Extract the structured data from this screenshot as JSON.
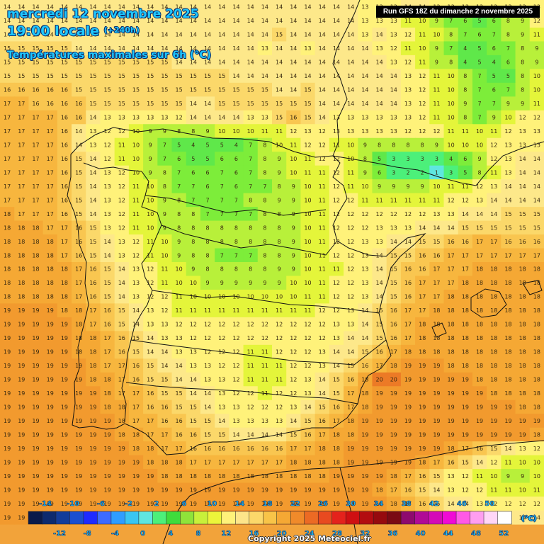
{
  "header": {
    "date_line": "mercredi 12 novembre 2025",
    "time_line": "19:00 locale",
    "lead_time": "(+240h)",
    "parameter_line": "Températures maximales sur 6h (°C)",
    "run_label": "Run GFS 18Z du dimanche 2 novembre 2025"
  },
  "footer": {
    "copyright": "Copyright 2025 Meteociel.fr",
    "unit": "(°C)"
  },
  "legend": {
    "top_labels": [
      "-14",
      "-10",
      "-6",
      "-2",
      "2",
      "6",
      "10",
      "14",
      "18",
      "22",
      "26",
      "30",
      "34",
      "38",
      "42",
      "46",
      "50"
    ],
    "bottom_labels": [
      "-12",
      "-8",
      "-4",
      "0",
      "4",
      "8",
      "12",
      "16",
      "20",
      "24",
      "28",
      "32",
      "36",
      "40",
      "44",
      "48",
      "52"
    ],
    "colors": [
      "#0a1a4a",
      "#0d2a6e",
      "#123c9a",
      "#1a4fd0",
      "#1e2bff",
      "#3d6bff",
      "#2f9dff",
      "#39c6f2",
      "#5fe6e0",
      "#4cf07a",
      "#3fdc3c",
      "#8fe33a",
      "#c8f03a",
      "#ecf53a",
      "#fff27a",
      "#fde58a",
      "#fbd86a",
      "#f8c448",
      "#f5a834",
      "#f08a2a",
      "#ec6a24",
      "#e84a20",
      "#e4221c",
      "#cf0f12",
      "#b30c10",
      "#960a0e",
      "#7a0a14",
      "#8e0a6e",
      "#b00a96",
      "#d40ab8",
      "#f00ad6",
      "#ff5ae6",
      "#ff9ef0",
      "#ffd6f8",
      "#ffffff"
    ]
  },
  "map": {
    "cities_shown": false,
    "grid_columns": 38,
    "grid_rows": 38,
    "temperature_rows": [
      "14 14 14 14 14 14 14 14 14 14 14 14 14 14 14 14 14 14 14 14 14 14 14 14 14 13 13 13 14 14 13 13 13 13 12 13 13 13",
      "14 14 14 14 14 14 14 14 14 14 14 14 14 14 14 14 14 14 14 14 14 14 14 14 14 13 13 13 11 10 9 7 6 5 6 8 9 12",
      "14 14 14 14 14 14 14 14 14 14 14 14 14 14 14 14 14 14 14 15 14 14 14 14 14 13 14 13 12 11 10 8 7 6 7 8 9 11",
      "15 15 15 15 15 14 14 14 14 14 14 14 14 14 14 14 14 14 13 14 14 13 14 14 14 14 13 12 11 10 9 7 4 5 6 7 8 9",
      "15 15 15 15 15 15 15 15 15 15 15 15 14 14 14 14 14 14 14 14 14 14 14 14 14 14 14 13 12 11 9 8 4 5 4 6 8 9",
      "15 15 15 15 15 15 15 15 15 15 15 15 15 15 15 15 14 14 14 14 14 14 14 14 14 14 14 14 13 12 11 10 8 7 5 5 8 10",
      "16 16 16 16 16 15 15 15 15 15 15 15 15 15 15 15 15 15 15 14 14 15 14 14 14 14 14 14 13 12 11 10 8 7 6 7 8 10",
      "17 17 16 16 16 16 15 15 15 15 15 15 15 14 14 15 15 15 15 15 15 15 14 14 14 14 14 14 13 12 11 10 9 7 7 9 9 11",
      "17 17 17 17 16 16 14 13 13 13 13 13 12 14 14 14 14 13 13 15 16 15 14 13 13 13 13 13 13 12 11 10 8 7 9 10 12 12",
      "17 17 17 17 16 14 13 12 12 10 9 9 8 8 9 10 10 10 11 11 12 13 12 13 13 13 13 13 12 12 12 11 11 10 11 12 13 13",
      "17 17 17 17 16 14 13 12 11 10 9 7 5 4 5 5 4 7 8 10 11 12 12 11 10 9 8 8 8 8 9 10 10 10 12 13 13 13",
      "17 17 17 17 16 15 14 12 11 10 9 7 6 5 5 6 6 7 8 9 10 11 12 12 10 8 5 3 3 3 3 4 6 9 12 13 14 14",
      "17 17 17 17 16 15 14 13 12 10 9 8 7 6 6 7 6 7 8 9 10 11 11 12 11 9 6 3 2 2 1 3 5 8 11 13 14 14",
      "17 17 17 17 16 15 14 13 12 11 10 8 7 7 6 7 6 7 7 8 9 10 11 12 11 10 9 9 9 9 10 11 11 12 13 14 14 14",
      "17 17 17 17 16 15 14 13 12 11 10 9 8 7 7 7 7 8 8 9 9 10 11 12 12 11 11 11 11 11 11 12 12 13 14 14 14 14",
      "18 17 17 17 16 15 14 13 12 11 10 9 8 8 7 7 7 7 8 8 9 10 11 12 12 12 12 12 12 12 13 13 14 14 14 15 15 15",
      "18 18 18 17 17 16 15 13 12 11 10 9 8 8 8 8 8 8 8 8 9 10 11 12 12 12 13 13 13 14 14 14 15 15 15 15 15 15",
      "18 18 18 18 17 16 15 14 13 12 11 10 9 8 8 8 8 8 8 8 9 10 11 12 12 13 13 14 14 15 15 16 16 17 17 16 16 16",
      "18 18 18 18 17 16 15 14 13 12 11 10 9 8 8 7 7 7 8 8 9 10 11 12 12 13 14 15 15 16 16 17 17 17 17 17 17 17",
      "18 18 18 18 18 17 16 15 14 13 12 11 10 9 8 8 8 8 8 9 9 10 11 11 12 13 14 15 16 16 17 17 17 18 18 18 18 18",
      "18 18 18 18 18 17 16 15 14 13 12 11 10 10 9 9 9 9 9 9 10 10 11 12 12 13 14 15 16 17 17 17 18 18 18 18 18 18",
      "18 18 18 18 18 17 16 15 14 13 12 12 11 10 10 10 10 10 10 10 10 11 11 12 12 13 14 15 16 17 17 18 18 18 18 18 18 18",
      "19 19 19 19 18 18 17 16 15 14 13 12 11 11 11 11 11 11 11 11 11 11 12 12 13 14 15 16 17 17 18 18 18 18 18 18 18 18",
      "19 19 19 19 19 18 17 16 15 14 13 13 12 12 12 12 12 12 12 12 12 12 12 13 13 14 15 16 17 18 18 18 18 18 18 18 18 18",
      "19 19 19 19 19 18 18 17 16 15 14 13 13 12 12 12 12 12 12 12 12 12 12 13 14 14 15 16 17 18 18 18 18 18 18 18 18 18",
      "19 19 19 19 19 18 18 17 16 15 14 14 13 13 12 12 12 11 11 12 12 12 13 14 14 15 16 17 18 18 18 18 18 18 18 18 18 18",
      "19 19 19 19 19 19 18 17 17 16 15 14 14 13 13 12 12 11 11 11 12 12 13 14 15 16 17 18 19 19 19 18 18 18 18 18 18 18",
      "19 19 19 19 19 19 18 18 17 16 15 15 14 14 13 13 12 11 11 11 12 13 14 15 16 18 20 20 19 19 19 19 19 18 18 18 18 18",
      "19 19 19 19 19 19 19 18 17 17 16 15 15 14 14 13 12 12 11 12 12 13 14 15 17 18 19 19 19 19 19 19 19 19 18 18 18 18",
      "19 19 19 19 19 19 19 18 18 17 16 16 15 15 14 13 13 12 12 12 13 14 15 16 17 18 19 19 19 19 19 19 19 19 19 19 18 18",
      "19 19 19 19 19 19 19 19 18 17 17 16 16 15 15 14 13 13 13 13 14 15 16 17 18 19 19 19 19 19 19 19 19 19 19 19 19 19",
      "19 19 19 19 19 19 19 19 18 18 17 17 16 16 15 15 14 14 14 14 15 16 17 18 18 19 19 19 19 19 19 19 19 19 19 19 19 18",
      "19 19 19 19 19 19 19 19 19 18 18 17 17 16 16 16 16 16 16 16 17 17 18 18 19 19 19 19 19 19 19 18 17 16 15 14 13 12",
      "19 19 19 19 19 19 19 19 19 19 18 18 18 17 17 17 17 17 17 17 18 18 18 18 19 19 19 19 19 18 17 16 15 14 12 11 10 10",
      "19 19 19 19 19 19 19 19 19 19 19 18 18 18 18 18 18 18 18 18 18 18 18 19 19 19 19 18 17 16 15 13 12 11 10 9 9 10",
      "19 19 19 19 19 19 19 19 19 19 19 19 19 19 19 19 19 19 19 19 19 19 19 19 19 19 18 17 16 15 14 13 12 12 11 11 10 11",
      "19 19 19 19 19 19 19 19 19 19 19 19 19 19 19 19 19 19 19 19 19 19 19 19 19 19 19 18 17 16 15 14 14 13 12 12 12 12",
      "19 19 19 19 19 19 19 19 19 19 19 19 20 20 20 20 20 20 20 20 20 20 20 20 20 20 19 19 18 17 16 15 15 14 14 14 14 14"
    ]
  }
}
